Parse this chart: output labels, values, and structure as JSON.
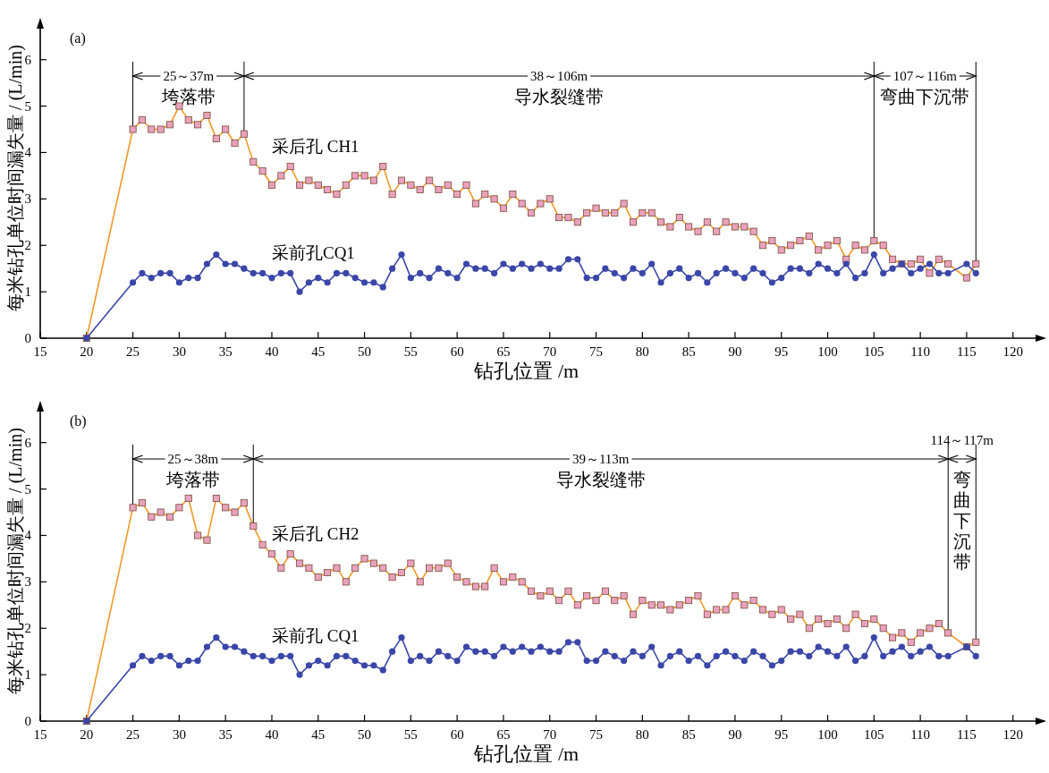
{
  "chart_data": [
    {
      "type": "line",
      "title": "(a)",
      "xlabel": "钻孔位置 /m",
      "ylabel": "每米钻孔单位时间漏失量 / (L/min)",
      "x": [
        20,
        25,
        26,
        27,
        28,
        29,
        30,
        31,
        32,
        33,
        34,
        35,
        36,
        37,
        38,
        39,
        40,
        41,
        42,
        43,
        44,
        45,
        46,
        47,
        48,
        49,
        50,
        51,
        52,
        53,
        54,
        55,
        56,
        57,
        58,
        59,
        60,
        61,
        62,
        63,
        64,
        65,
        66,
        67,
        68,
        69,
        70,
        71,
        72,
        73,
        74,
        75,
        76,
        77,
        78,
        79,
        80,
        81,
        82,
        83,
        84,
        85,
        86,
        87,
        88,
        89,
        90,
        91,
        92,
        93,
        94,
        95,
        96,
        97,
        98,
        99,
        100,
        101,
        102,
        103,
        104,
        105,
        106,
        107,
        108,
        109,
        110,
        111,
        112,
        113,
        115,
        116
      ],
      "series": [
        {
          "name": "采后孔 CH1",
          "color": "#f09a28",
          "marker": "square",
          "values": [
            0,
            4.5,
            4.7,
            4.5,
            4.5,
            4.6,
            5.0,
            4.7,
            4.6,
            4.8,
            4.3,
            4.5,
            4.2,
            4.4,
            3.8,
            3.6,
            3.3,
            3.5,
            3.7,
            3.3,
            3.4,
            3.3,
            3.2,
            3.1,
            3.3,
            3.5,
            3.5,
            3.4,
            3.7,
            3.1,
            3.4,
            3.3,
            3.2,
            3.4,
            3.2,
            3.3,
            3.1,
            3.3,
            2.9,
            3.1,
            3.0,
            2.8,
            3.1,
            2.9,
            2.7,
            2.9,
            3.0,
            2.6,
            2.6,
            2.5,
            2.7,
            2.8,
            2.7,
            2.7,
            2.9,
            2.5,
            2.7,
            2.7,
            2.5,
            2.4,
            2.6,
            2.4,
            2.3,
            2.5,
            2.3,
            2.5,
            2.4,
            2.4,
            2.3,
            2.0,
            2.1,
            1.9,
            2.0,
            2.1,
            2.2,
            1.9,
            2.0,
            2.1,
            1.7,
            2.0,
            1.9,
            2.1,
            2.0,
            1.7,
            1.6,
            1.6,
            1.7,
            1.4,
            1.7,
            1.6,
            1.3,
            1.6
          ]
        },
        {
          "name": "采前孔CQ1",
          "color": "#3a46a8",
          "marker": "circle",
          "values": [
            0,
            1.2,
            1.4,
            1.3,
            1.4,
            1.4,
            1.2,
            1.3,
            1.3,
            1.6,
            1.8,
            1.6,
            1.6,
            1.5,
            1.4,
            1.4,
            1.3,
            1.4,
            1.4,
            1.0,
            1.2,
            1.3,
            1.2,
            1.4,
            1.4,
            1.3,
            1.2,
            1.2,
            1.1,
            1.5,
            1.8,
            1.3,
            1.4,
            1.3,
            1.5,
            1.4,
            1.3,
            1.6,
            1.5,
            1.5,
            1.4,
            1.6,
            1.5,
            1.6,
            1.5,
            1.6,
            1.5,
            1.5,
            1.7,
            1.7,
            1.3,
            1.3,
            1.5,
            1.4,
            1.3,
            1.5,
            1.4,
            1.6,
            1.2,
            1.4,
            1.5,
            1.3,
            1.4,
            1.2,
            1.4,
            1.5,
            1.4,
            1.3,
            1.5,
            1.4,
            1.2,
            1.3,
            1.5,
            1.5,
            1.4,
            1.6,
            1.5,
            1.4,
            1.6,
            1.3,
            1.4,
            1.8,
            1.4,
            1.5,
            1.6,
            1.4,
            1.5,
            1.6,
            1.4,
            1.4,
            1.6,
            1.4
          ]
        }
      ],
      "xlim": [
        15,
        123.6
      ],
      "ylim": [
        0,
        6.9
      ],
      "xticks": [
        15,
        20,
        25,
        30,
        35,
        40,
        45,
        50,
        55,
        60,
        65,
        70,
        75,
        80,
        85,
        90,
        95,
        100,
        105,
        110,
        115,
        120
      ],
      "yticks": [
        0,
        1,
        2,
        3,
        4,
        5,
        6
      ],
      "ref_lines": [
        {
          "axis": "x",
          "value": 25
        },
        {
          "axis": "x",
          "value": 37
        },
        {
          "axis": "x",
          "value": 105
        },
        {
          "axis": "x",
          "value": 116
        }
      ],
      "annotations": [
        "25～37m",
        "垮落带",
        "38～106m",
        "导水裂缝带",
        "107～116m",
        "弯曲下沉带"
      ]
    },
    {
      "type": "line",
      "title": "(b)",
      "xlabel": "钻孔位置 /m",
      "ylabel": "每米钻孔单位时间漏失量 / (L/min)",
      "x": [
        20,
        25,
        26,
        27,
        28,
        29,
        30,
        31,
        32,
        33,
        34,
        35,
        36,
        37,
        38,
        39,
        40,
        41,
        42,
        43,
        44,
        45,
        46,
        47,
        48,
        49,
        50,
        51,
        52,
        53,
        54,
        55,
        56,
        57,
        58,
        59,
        60,
        61,
        62,
        63,
        64,
        65,
        66,
        67,
        68,
        69,
        70,
        71,
        72,
        73,
        74,
        75,
        76,
        77,
        78,
        79,
        80,
        81,
        82,
        83,
        84,
        85,
        86,
        87,
        88,
        89,
        90,
        91,
        92,
        93,
        94,
        95,
        96,
        97,
        98,
        99,
        100,
        101,
        102,
        103,
        104,
        105,
        106,
        107,
        108,
        109,
        110,
        111,
        112,
        113,
        115,
        116
      ],
      "series": [
        {
          "name": "采后孔 CH2",
          "color": "#f09a28",
          "marker": "square",
          "values": [
            0,
            4.6,
            4.7,
            4.4,
            4.5,
            4.4,
            4.6,
            4.8,
            4.0,
            3.9,
            4.8,
            4.6,
            4.5,
            4.7,
            4.2,
            3.8,
            3.6,
            3.3,
            3.6,
            3.4,
            3.3,
            3.1,
            3.2,
            3.3,
            3.0,
            3.3,
            3.5,
            3.4,
            3.3,
            3.1,
            3.2,
            3.4,
            3.0,
            3.3,
            3.3,
            3.4,
            3.1,
            3.0,
            2.9,
            2.9,
            3.3,
            3.0,
            3.1,
            3.0,
            2.8,
            2.7,
            2.8,
            2.6,
            2.8,
            2.5,
            2.7,
            2.6,
            2.8,
            2.6,
            2.7,
            2.3,
            2.6,
            2.5,
            2.5,
            2.4,
            2.5,
            2.6,
            2.7,
            2.3,
            2.4,
            2.4,
            2.7,
            2.5,
            2.6,
            2.4,
            2.3,
            2.4,
            2.2,
            2.3,
            2.0,
            2.2,
            2.1,
            2.2,
            2.0,
            2.3,
            2.1,
            2.2,
            2.0,
            1.8,
            1.9,
            1.7,
            1.9,
            2.0,
            2.1,
            1.9,
            1.6,
            1.7
          ]
        },
        {
          "name": "采前孔 CQ1",
          "color": "#3a46a8",
          "marker": "circle",
          "values": [
            0,
            1.2,
            1.4,
            1.3,
            1.4,
            1.4,
            1.2,
            1.3,
            1.3,
            1.6,
            1.8,
            1.6,
            1.6,
            1.5,
            1.4,
            1.4,
            1.3,
            1.4,
            1.4,
            1.0,
            1.2,
            1.3,
            1.2,
            1.4,
            1.4,
            1.3,
            1.2,
            1.2,
            1.1,
            1.5,
            1.8,
            1.3,
            1.4,
            1.3,
            1.5,
            1.4,
            1.3,
            1.6,
            1.5,
            1.5,
            1.4,
            1.6,
            1.5,
            1.6,
            1.5,
            1.6,
            1.5,
            1.5,
            1.7,
            1.7,
            1.3,
            1.3,
            1.5,
            1.4,
            1.3,
            1.5,
            1.4,
            1.6,
            1.2,
            1.4,
            1.5,
            1.3,
            1.4,
            1.2,
            1.4,
            1.5,
            1.4,
            1.3,
            1.5,
            1.4,
            1.2,
            1.3,
            1.5,
            1.5,
            1.4,
            1.6,
            1.5,
            1.4,
            1.6,
            1.3,
            1.4,
            1.8,
            1.4,
            1.5,
            1.6,
            1.4,
            1.5,
            1.6,
            1.4,
            1.4,
            1.6,
            1.4
          ]
        }
      ],
      "xlim": [
        15,
        123.6
      ],
      "ylim": [
        0,
        6.9
      ],
      "xticks": [
        15,
        20,
        25,
        30,
        35,
        40,
        45,
        50,
        55,
        60,
        65,
        70,
        75,
        80,
        85,
        90,
        95,
        100,
        105,
        110,
        115,
        120
      ],
      "yticks": [
        0,
        1,
        2,
        3,
        4,
        5,
        6
      ],
      "ref_lines": [
        {
          "axis": "x",
          "value": 25
        },
        {
          "axis": "x",
          "value": 38
        },
        {
          "axis": "x",
          "value": 113
        },
        {
          "axis": "x",
          "value": 116
        }
      ],
      "annotations": [
        "25～38m",
        "垮落带",
        "39～113m",
        "导水裂缝带",
        "114～117m",
        "弯曲下沉带"
      ]
    }
  ]
}
